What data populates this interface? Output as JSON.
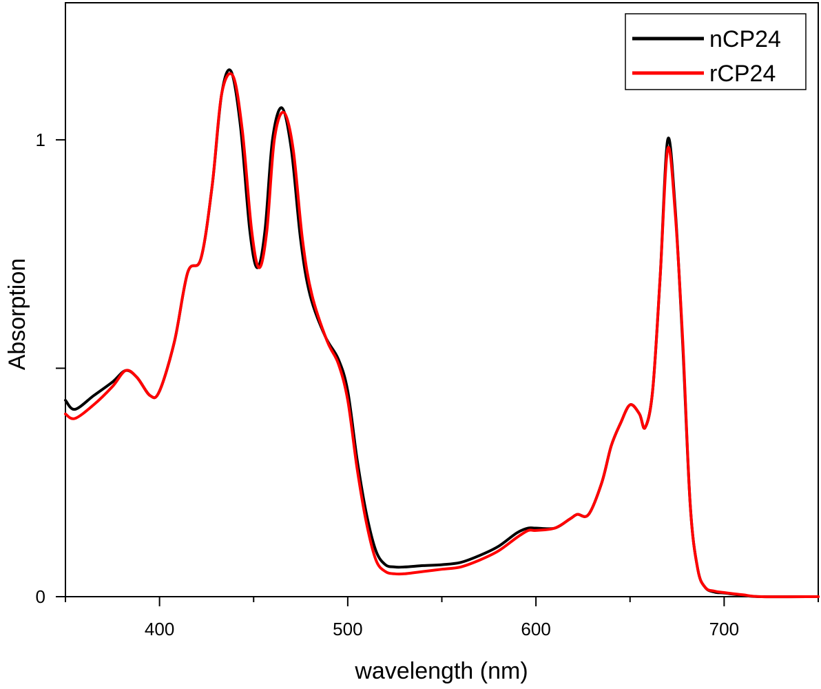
{
  "chart_data": {
    "type": "line",
    "xlabel": "wavelength (nm)",
    "ylabel": "Absorption",
    "xlim": [
      350,
      750
    ],
    "ylim": [
      0,
      1.3
    ],
    "xticks": [
      400,
      500,
      600,
      700
    ],
    "xtick_labels": [
      "400",
      "500",
      "600",
      "700"
    ],
    "yticks": [
      0,
      0.5,
      1
    ],
    "ytick_labels": [
      "0",
      "",
      "1"
    ],
    "grid": false,
    "legend_position": "top-right",
    "series": [
      {
        "name": "nCP24",
        "color": "#000000",
        "x": [
          350,
          355,
          365,
          375,
          382,
          388,
          395,
          400,
          408,
          415,
          422,
          428,
          433,
          438,
          443,
          448,
          452,
          456,
          460,
          465,
          470,
          475,
          480,
          488,
          495,
          500,
          505,
          510,
          515,
          520,
          525,
          530,
          540,
          550,
          560,
          570,
          580,
          590,
          596,
          600,
          610,
          618,
          622,
          628,
          635,
          640,
          645,
          650,
          655,
          658,
          662,
          666,
          670,
          674,
          678,
          682,
          686,
          690,
          695,
          700,
          710,
          720,
          750
        ],
        "y": [
          0.43,
          0.41,
          0.44,
          0.47,
          0.495,
          0.48,
          0.44,
          0.45,
          0.56,
          0.71,
          0.74,
          0.9,
          1.1,
          1.15,
          1.03,
          0.8,
          0.72,
          0.8,
          1.0,
          1.07,
          0.98,
          0.78,
          0.66,
          0.57,
          0.52,
          0.45,
          0.3,
          0.18,
          0.1,
          0.07,
          0.065,
          0.065,
          0.068,
          0.07,
          0.075,
          0.09,
          0.11,
          0.14,
          0.15,
          0.15,
          0.15,
          0.17,
          0.18,
          0.18,
          0.25,
          0.33,
          0.38,
          0.42,
          0.4,
          0.37,
          0.45,
          0.7,
          1.0,
          0.85,
          0.55,
          0.2,
          0.06,
          0.02,
          0.01,
          0.008,
          0.003,
          0.0,
          0.0
        ]
      },
      {
        "name": "rCP24",
        "color": "#ff0000",
        "x": [
          350,
          355,
          365,
          375,
          382,
          388,
          395,
          400,
          408,
          415,
          422,
          428,
          433,
          439,
          444,
          449,
          453,
          457,
          461,
          466,
          471,
          476,
          481,
          489,
          495,
          500,
          505,
          510,
          515,
          520,
          525,
          530,
          540,
          550,
          560,
          570,
          580,
          590,
          596,
          600,
          610,
          618,
          622,
          628,
          635,
          640,
          645,
          650,
          655,
          658,
          662,
          666,
          670,
          674,
          678,
          682,
          686,
          690,
          695,
          700,
          710,
          720,
          750
        ],
        "y": [
          0.4,
          0.39,
          0.42,
          0.46,
          0.495,
          0.48,
          0.44,
          0.45,
          0.56,
          0.71,
          0.74,
          0.9,
          1.1,
          1.14,
          1.02,
          0.8,
          0.72,
          0.8,
          1.0,
          1.06,
          0.98,
          0.78,
          0.66,
          0.56,
          0.51,
          0.43,
          0.28,
          0.16,
          0.08,
          0.055,
          0.05,
          0.05,
          0.055,
          0.06,
          0.065,
          0.08,
          0.1,
          0.13,
          0.145,
          0.145,
          0.15,
          0.17,
          0.18,
          0.18,
          0.25,
          0.33,
          0.38,
          0.42,
          0.4,
          0.37,
          0.45,
          0.7,
          0.98,
          0.84,
          0.56,
          0.2,
          0.06,
          0.02,
          0.012,
          0.009,
          0.004,
          0.0,
          0.0
        ]
      }
    ]
  }
}
